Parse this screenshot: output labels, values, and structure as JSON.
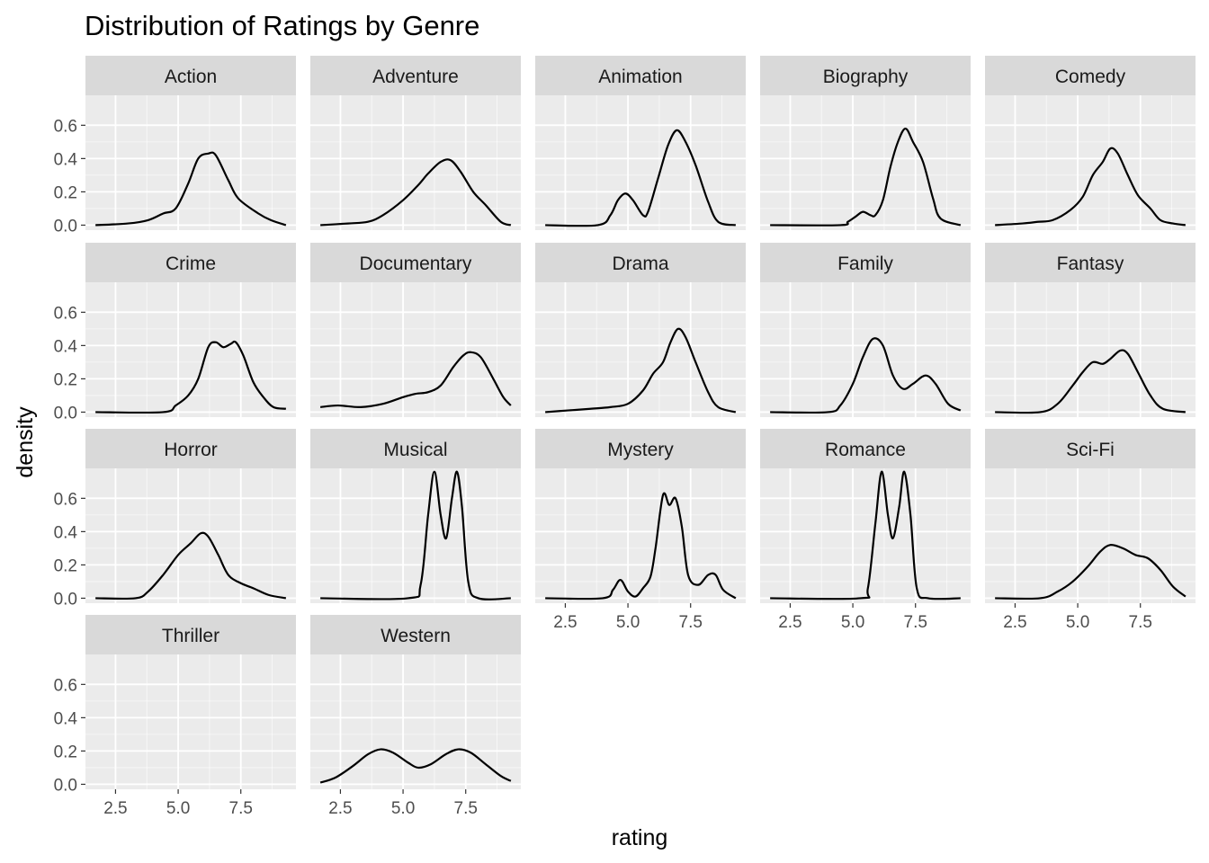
{
  "chart_data": {
    "type": "area",
    "chart_kind": "faceted density curves",
    "title": "Distribution of Ratings by Genre",
    "xlabel": "rating",
    "ylabel": "density",
    "xlim": [
      1.3,
      9.7
    ],
    "ylim": [
      -0.03,
      0.78
    ],
    "x_ticks": [
      2.5,
      5.0,
      7.5
    ],
    "x_tick_labels": [
      "2.5",
      "5.0",
      "7.5"
    ],
    "y_ticks": [
      0.0,
      0.2,
      0.4,
      0.6
    ],
    "y_tick_labels": [
      "0.0",
      "0.2",
      "0.4",
      "0.6"
    ],
    "grid": true,
    "facet_layout": {
      "columns": 5,
      "rows": 4
    },
    "colors": {
      "panel_background": "#ebebeb",
      "strip_background": "#d9d9d9",
      "grid_major": "#ffffff",
      "line": "#000000",
      "tick_label": "#4d4d4d"
    },
    "panels": [
      {
        "genre": "Action",
        "curve": [
          [
            1.7,
            0.0
          ],
          [
            3.0,
            0.01
          ],
          [
            3.8,
            0.03
          ],
          [
            4.4,
            0.07
          ],
          [
            4.9,
            0.1
          ],
          [
            5.4,
            0.25
          ],
          [
            5.8,
            0.4
          ],
          [
            6.2,
            0.43
          ],
          [
            6.5,
            0.42
          ],
          [
            7.0,
            0.27
          ],
          [
            7.4,
            0.16
          ],
          [
            8.2,
            0.07
          ],
          [
            8.7,
            0.03
          ],
          [
            9.3,
            0.0
          ]
        ]
      },
      {
        "genre": "Adventure",
        "curve": [
          [
            1.7,
            0.0
          ],
          [
            2.8,
            0.01
          ],
          [
            3.6,
            0.02
          ],
          [
            4.2,
            0.06
          ],
          [
            5.0,
            0.15
          ],
          [
            5.6,
            0.24
          ],
          [
            6.0,
            0.31
          ],
          [
            6.5,
            0.38
          ],
          [
            6.9,
            0.39
          ],
          [
            7.3,
            0.32
          ],
          [
            7.8,
            0.2
          ],
          [
            8.3,
            0.12
          ],
          [
            8.9,
            0.02
          ],
          [
            9.3,
            0.0
          ]
        ]
      },
      {
        "genre": "Animation",
        "curve": [
          [
            1.7,
            0.0
          ],
          [
            3.8,
            0.0
          ],
          [
            4.3,
            0.06
          ],
          [
            4.6,
            0.15
          ],
          [
            4.9,
            0.19
          ],
          [
            5.2,
            0.15
          ],
          [
            5.6,
            0.06
          ],
          [
            5.8,
            0.08
          ],
          [
            6.2,
            0.28
          ],
          [
            6.6,
            0.48
          ],
          [
            6.95,
            0.57
          ],
          [
            7.3,
            0.5
          ],
          [
            7.7,
            0.36
          ],
          [
            8.2,
            0.14
          ],
          [
            8.6,
            0.02
          ],
          [
            9.3,
            0.0
          ]
        ]
      },
      {
        "genre": "Biography",
        "curve": [
          [
            1.7,
            0.0
          ],
          [
            4.5,
            0.0
          ],
          [
            4.8,
            0.02
          ],
          [
            5.1,
            0.05
          ],
          [
            5.4,
            0.08
          ],
          [
            5.7,
            0.06
          ],
          [
            5.9,
            0.06
          ],
          [
            6.2,
            0.15
          ],
          [
            6.5,
            0.35
          ],
          [
            6.8,
            0.5
          ],
          [
            7.1,
            0.58
          ],
          [
            7.4,
            0.5
          ],
          [
            7.8,
            0.38
          ],
          [
            8.2,
            0.16
          ],
          [
            8.5,
            0.04
          ],
          [
            9.3,
            0.0
          ]
        ]
      },
      {
        "genre": "Comedy",
        "curve": [
          [
            1.7,
            0.0
          ],
          [
            2.8,
            0.01
          ],
          [
            3.4,
            0.02
          ],
          [
            4.0,
            0.03
          ],
          [
            4.7,
            0.09
          ],
          [
            5.2,
            0.17
          ],
          [
            5.6,
            0.3
          ],
          [
            6.0,
            0.38
          ],
          [
            6.3,
            0.46
          ],
          [
            6.6,
            0.43
          ],
          [
            7.0,
            0.3
          ],
          [
            7.4,
            0.18
          ],
          [
            7.9,
            0.1
          ],
          [
            8.3,
            0.03
          ],
          [
            8.8,
            0.01
          ],
          [
            9.3,
            0.0
          ]
        ]
      },
      {
        "genre": "Crime",
        "curve": [
          [
            1.7,
            0.0
          ],
          [
            4.4,
            0.0
          ],
          [
            4.9,
            0.04
          ],
          [
            5.4,
            0.1
          ],
          [
            5.8,
            0.2
          ],
          [
            6.2,
            0.39
          ],
          [
            6.5,
            0.42
          ],
          [
            6.8,
            0.39
          ],
          [
            7.1,
            0.41
          ],
          [
            7.3,
            0.42
          ],
          [
            7.6,
            0.34
          ],
          [
            8.0,
            0.18
          ],
          [
            8.4,
            0.09
          ],
          [
            8.8,
            0.03
          ],
          [
            9.3,
            0.02
          ]
        ]
      },
      {
        "genre": "Documentary",
        "curve": [
          [
            1.7,
            0.03
          ],
          [
            2.4,
            0.04
          ],
          [
            3.3,
            0.03
          ],
          [
            4.2,
            0.05
          ],
          [
            5.0,
            0.09
          ],
          [
            5.5,
            0.11
          ],
          [
            6.0,
            0.12
          ],
          [
            6.5,
            0.16
          ],
          [
            7.0,
            0.27
          ],
          [
            7.4,
            0.34
          ],
          [
            7.7,
            0.36
          ],
          [
            8.1,
            0.33
          ],
          [
            8.6,
            0.2
          ],
          [
            9.0,
            0.09
          ],
          [
            9.3,
            0.04
          ]
        ]
      },
      {
        "genre": "Drama",
        "curve": [
          [
            1.7,
            0.0
          ],
          [
            2.6,
            0.01
          ],
          [
            3.5,
            0.02
          ],
          [
            4.3,
            0.03
          ],
          [
            5.0,
            0.05
          ],
          [
            5.6,
            0.13
          ],
          [
            6.0,
            0.23
          ],
          [
            6.4,
            0.3
          ],
          [
            6.7,
            0.42
          ],
          [
            7.0,
            0.5
          ],
          [
            7.3,
            0.45
          ],
          [
            7.7,
            0.3
          ],
          [
            8.2,
            0.12
          ],
          [
            8.6,
            0.03
          ],
          [
            9.3,
            0.0
          ]
        ]
      },
      {
        "genre": "Family",
        "curve": [
          [
            1.7,
            0.0
          ],
          [
            4.0,
            0.0
          ],
          [
            4.5,
            0.04
          ],
          [
            5.0,
            0.17
          ],
          [
            5.4,
            0.33
          ],
          [
            5.8,
            0.44
          ],
          [
            6.2,
            0.4
          ],
          [
            6.6,
            0.22
          ],
          [
            7.0,
            0.14
          ],
          [
            7.4,
            0.17
          ],
          [
            7.9,
            0.22
          ],
          [
            8.3,
            0.17
          ],
          [
            8.8,
            0.05
          ],
          [
            9.3,
            0.01
          ]
        ]
      },
      {
        "genre": "Fantasy",
        "curve": [
          [
            1.7,
            0.0
          ],
          [
            3.5,
            0.0
          ],
          [
            4.2,
            0.05
          ],
          [
            4.8,
            0.16
          ],
          [
            5.2,
            0.24
          ],
          [
            5.6,
            0.3
          ],
          [
            6.0,
            0.29
          ],
          [
            6.3,
            0.32
          ],
          [
            6.7,
            0.37
          ],
          [
            7.0,
            0.35
          ],
          [
            7.4,
            0.24
          ],
          [
            7.9,
            0.1
          ],
          [
            8.4,
            0.02
          ],
          [
            9.3,
            0.0
          ]
        ]
      },
      {
        "genre": "Horror",
        "curve": [
          [
            1.7,
            0.0
          ],
          [
            3.3,
            0.0
          ],
          [
            3.8,
            0.04
          ],
          [
            4.4,
            0.14
          ],
          [
            5.0,
            0.26
          ],
          [
            5.5,
            0.33
          ],
          [
            5.9,
            0.39
          ],
          [
            6.2,
            0.37
          ],
          [
            6.6,
            0.26
          ],
          [
            7.0,
            0.14
          ],
          [
            7.5,
            0.09
          ],
          [
            8.0,
            0.06
          ],
          [
            8.6,
            0.02
          ],
          [
            9.3,
            0.0
          ]
        ]
      },
      {
        "genre": "Musical",
        "curve": [
          [
            1.7,
            0.0
          ],
          [
            5.2,
            0.0
          ],
          [
            5.7,
            0.08
          ],
          [
            6.0,
            0.5
          ],
          [
            6.25,
            0.76
          ],
          [
            6.5,
            0.5
          ],
          [
            6.72,
            0.36
          ],
          [
            6.95,
            0.6
          ],
          [
            7.15,
            0.76
          ],
          [
            7.35,
            0.55
          ],
          [
            7.6,
            0.1
          ],
          [
            8.0,
            0.0
          ],
          [
            9.3,
            0.0
          ]
        ]
      },
      {
        "genre": "Mystery",
        "curve": [
          [
            1.7,
            0.0
          ],
          [
            4.0,
            0.0
          ],
          [
            4.4,
            0.05
          ],
          [
            4.7,
            0.11
          ],
          [
            5.0,
            0.04
          ],
          [
            5.3,
            0.01
          ],
          [
            5.6,
            0.06
          ],
          [
            5.9,
            0.13
          ],
          [
            6.1,
            0.3
          ],
          [
            6.4,
            0.62
          ],
          [
            6.65,
            0.56
          ],
          [
            6.9,
            0.6
          ],
          [
            7.15,
            0.43
          ],
          [
            7.4,
            0.14
          ],
          [
            7.8,
            0.08
          ],
          [
            8.2,
            0.14
          ],
          [
            8.5,
            0.14
          ],
          [
            8.8,
            0.05
          ],
          [
            9.3,
            0.0
          ]
        ]
      },
      {
        "genre": "Romance",
        "curve": [
          [
            1.7,
            0.0
          ],
          [
            5.3,
            0.0
          ],
          [
            5.6,
            0.06
          ],
          [
            5.9,
            0.45
          ],
          [
            6.15,
            0.76
          ],
          [
            6.4,
            0.5
          ],
          [
            6.6,
            0.36
          ],
          [
            6.85,
            0.55
          ],
          [
            7.05,
            0.76
          ],
          [
            7.3,
            0.5
          ],
          [
            7.55,
            0.06
          ],
          [
            8.0,
            0.0
          ],
          [
            9.3,
            0.0
          ]
        ]
      },
      {
        "genre": "Sci-Fi",
        "curve": [
          [
            1.7,
            0.0
          ],
          [
            3.5,
            0.0
          ],
          [
            4.2,
            0.04
          ],
          [
            4.8,
            0.1
          ],
          [
            5.4,
            0.19
          ],
          [
            5.9,
            0.28
          ],
          [
            6.3,
            0.32
          ],
          [
            6.8,
            0.3
          ],
          [
            7.3,
            0.26
          ],
          [
            7.8,
            0.24
          ],
          [
            8.3,
            0.17
          ],
          [
            8.8,
            0.07
          ],
          [
            9.3,
            0.01
          ]
        ]
      },
      {
        "genre": "Thriller",
        "curve": []
      },
      {
        "genre": "Western",
        "curve": [
          [
            1.7,
            0.01
          ],
          [
            2.3,
            0.04
          ],
          [
            3.0,
            0.11
          ],
          [
            3.6,
            0.18
          ],
          [
            4.1,
            0.21
          ],
          [
            4.6,
            0.19
          ],
          [
            5.2,
            0.13
          ],
          [
            5.6,
            0.1
          ],
          [
            6.1,
            0.12
          ],
          [
            6.7,
            0.18
          ],
          [
            7.2,
            0.21
          ],
          [
            7.7,
            0.19
          ],
          [
            8.3,
            0.12
          ],
          [
            8.9,
            0.05
          ],
          [
            9.3,
            0.02
          ]
        ]
      }
    ]
  }
}
